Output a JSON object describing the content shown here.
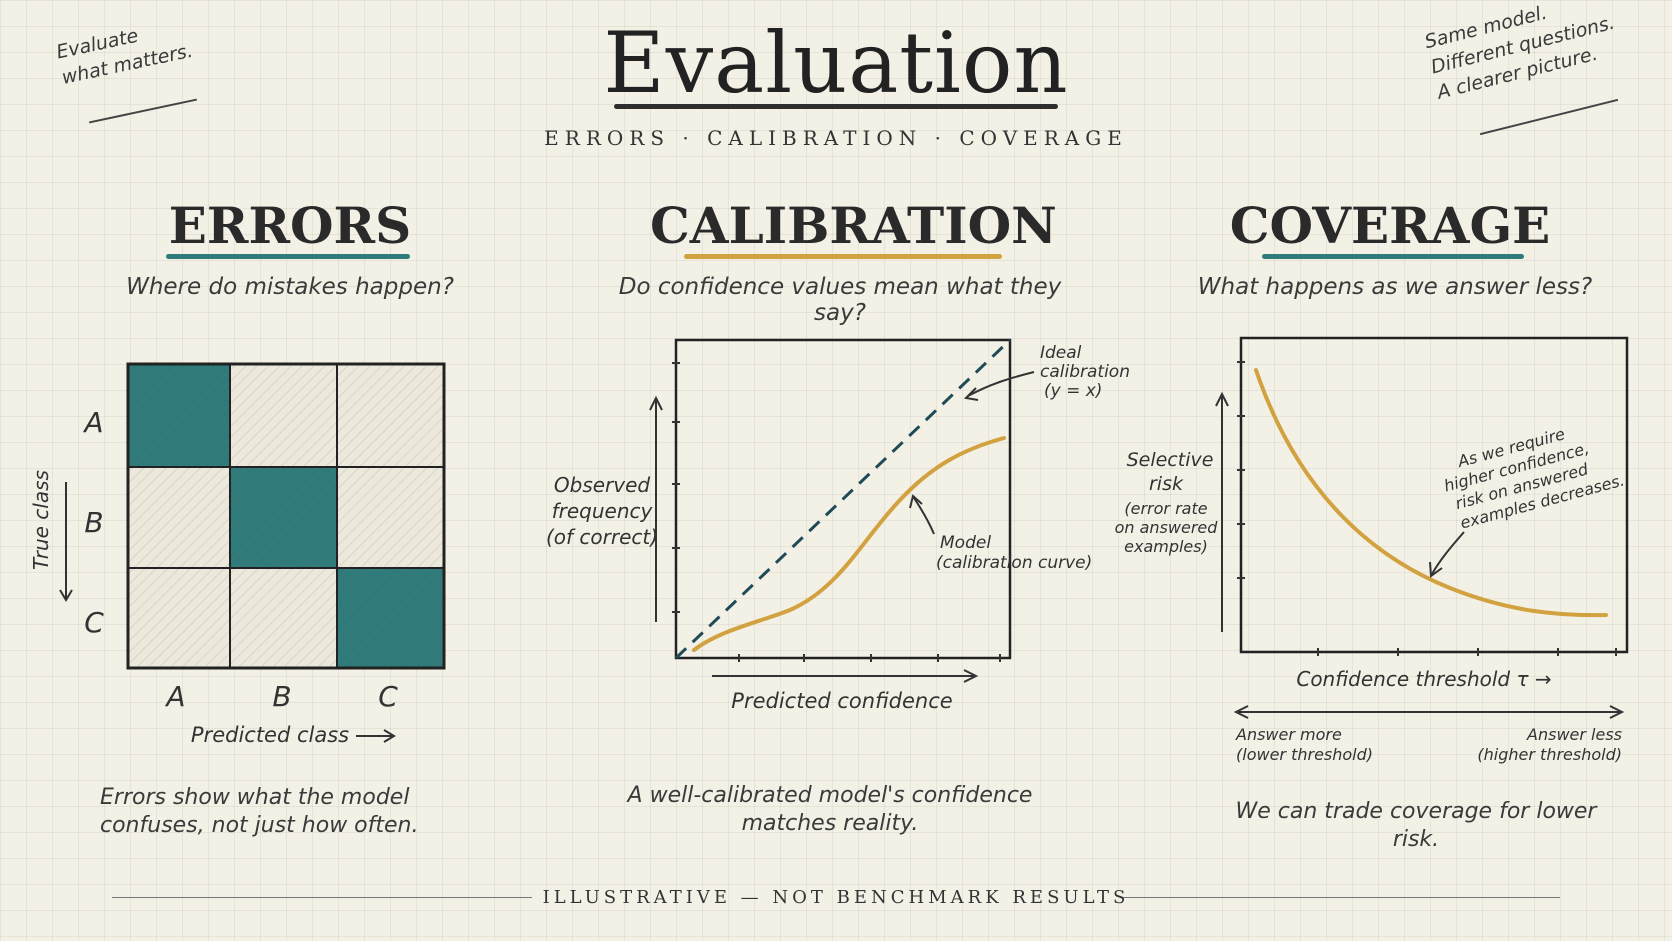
{
  "title": "Evaluation",
  "subtitle": "ERRORS  ·  CALIBRATION  ·  COVERAGE",
  "notes": {
    "top_left": [
      "Evaluate",
      "what matters."
    ],
    "top_right": [
      "Same model.",
      "Different questions.",
      "A clearer picture."
    ]
  },
  "colors": {
    "teal": "#2f7a7a",
    "gold": "#d1a23f",
    "ink": "#2b2b2b"
  },
  "errors": {
    "heading": "ERRORS",
    "question": "Where do mistakes happen?",
    "row_labels": [
      "A",
      "B",
      "C"
    ],
    "col_labels": [
      "A",
      "B",
      "C"
    ],
    "y_axis_label": "True class",
    "x_axis_label": "Predicted class",
    "matrix": [
      [
        1,
        0,
        0
      ],
      [
        0,
        1,
        0
      ],
      [
        0,
        0,
        1
      ]
    ],
    "caption": [
      "Errors show what the model",
      "confuses, not just how often."
    ]
  },
  "calibration": {
    "heading": "CALIBRATION",
    "question": "Do confidence values mean what they say?",
    "y_label": [
      "Observed",
      "frequency",
      "(of correct)"
    ],
    "x_label": "Predicted confidence",
    "ideal_label": [
      "Ideal",
      "calibration",
      "(y = x)"
    ],
    "model_label": [
      "Model",
      "(calibration curve)"
    ],
    "caption": [
      "A well-calibrated model's confidence",
      "matches reality."
    ]
  },
  "coverage": {
    "heading": "COVERAGE",
    "question": "What happens as we answer less?",
    "y_label": [
      "Selective",
      "risk",
      "(error rate",
      "on answered",
      "examples)"
    ],
    "x_label": "Confidence threshold τ →",
    "annotation": [
      "As we require",
      "higher confidence,",
      "risk on answered",
      "examples decreases."
    ],
    "left_note": [
      "Answer more",
      "(lower threshold)"
    ],
    "right_note": [
      "Answer less",
      "(higher threshold)"
    ],
    "caption": "We can trade coverage for lower risk."
  },
  "footer": "ILLUSTRATIVE — NOT BENCHMARK RESULTS"
}
